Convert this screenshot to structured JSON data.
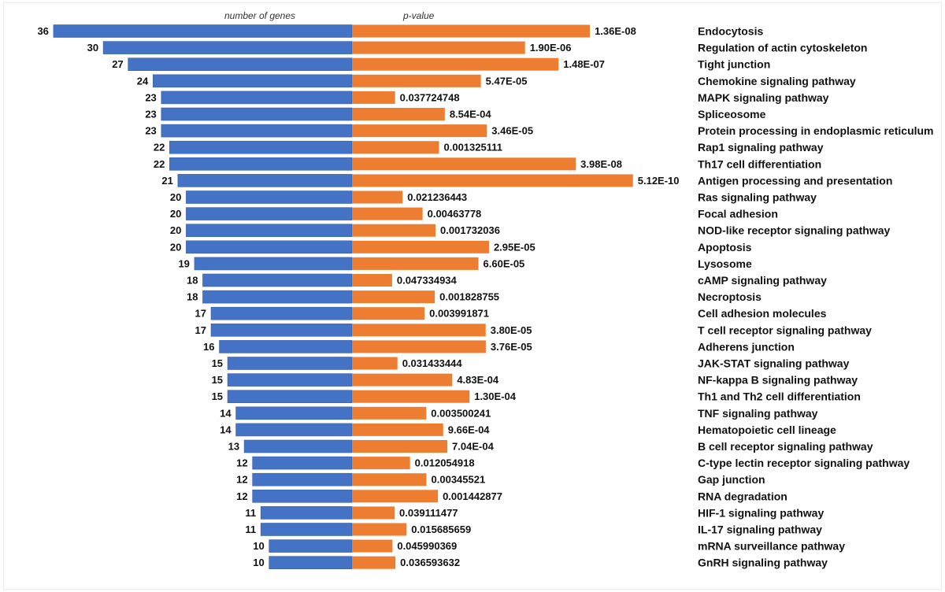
{
  "chart_data": {
    "type": "bar",
    "orientation": "horizontal-diverging",
    "title": "",
    "left_header": "number of genes",
    "right_header": "p-value",
    "colors": {
      "genes": "#4472c4",
      "pvalue": "#ed7d31"
    },
    "pvalue_scale": "-log10",
    "categories": [
      "Endocytosis",
      "Regulation of actin cytoskeleton",
      "Tight junction",
      "Chemokine signaling pathway",
      "MAPK signaling pathway",
      "Spliceosome",
      "Protein processing in endoplasmic reticulum",
      "Rap1 signaling pathway",
      "Th17 cell differentiation",
      "Antigen processing and presentation",
      "Ras signaling pathway",
      "Focal adhesion",
      "NOD-like receptor signaling pathway",
      "Apoptosis",
      "Lysosome",
      "cAMP signaling pathway",
      "Necroptosis",
      "Cell adhesion molecules",
      "T cell receptor signaling pathway",
      "Adherens junction",
      "JAK-STAT signaling pathway",
      "NF-kappa B signaling pathway",
      "Th1 and Th2 cell differentiation",
      "TNF signaling pathway",
      "Hematopoietic cell lineage",
      "B cell receptor signaling pathway",
      "C-type lectin receptor signaling pathway",
      "Gap junction",
      "RNA degradation",
      "HIF-1 signaling pathway",
      "IL-17 signaling pathway",
      "mRNA surveillance pathway",
      "GnRH signaling pathway"
    ],
    "series": [
      {
        "name": "number of genes",
        "values": [
          36,
          30,
          27,
          24,
          23,
          23,
          23,
          22,
          22,
          21,
          20,
          20,
          20,
          20,
          19,
          18,
          18,
          17,
          17,
          16,
          15,
          15,
          15,
          14,
          14,
          13,
          12,
          12,
          12,
          11,
          11,
          10,
          10
        ]
      },
      {
        "name": "p-value",
        "values": [
          1.36e-08,
          1.9e-06,
          1.48e-07,
          5.47e-05,
          0.037724748,
          0.000854,
          3.46e-05,
          0.001325111,
          3.98e-08,
          5.12e-10,
          0.021236443,
          0.00463778,
          0.001732036,
          2.95e-05,
          6.6e-05,
          0.047334934,
          0.001828755,
          0.003991871,
          3.8e-05,
          3.76e-05,
          0.031433444,
          0.000483,
          0.00013,
          0.003500241,
          0.000966,
          0.000704,
          0.012054918,
          0.00345521,
          0.001442877,
          0.039111477,
          0.015685659,
          0.045990369,
          0.036593632
        ],
        "labels": [
          "1.36E-08",
          "1.90E-06",
          "1.48E-07",
          "5.47E-05",
          "0.037724748",
          "8.54E-04",
          "3.46E-05",
          "0.001325111",
          "3.98E-08",
          "5.12E-10",
          "0.021236443",
          "0.00463778",
          "0.001732036",
          "2.95E-05",
          "6.60E-05",
          "0.047334934",
          "0.001828755",
          "0.003991871",
          "3.80E-05",
          "3.76E-05",
          "0.031433444",
          "4.83E-04",
          "1.30E-04",
          "0.003500241",
          "9.66E-04",
          "7.04E-04",
          "0.012054918",
          "0.00345521",
          "0.001442877",
          "0.039111477",
          "0.015685659",
          "0.045990369",
          "0.036593632"
        ]
      }
    ],
    "xlabel": "",
    "ylabel": "",
    "grid": false,
    "legend": "none"
  }
}
